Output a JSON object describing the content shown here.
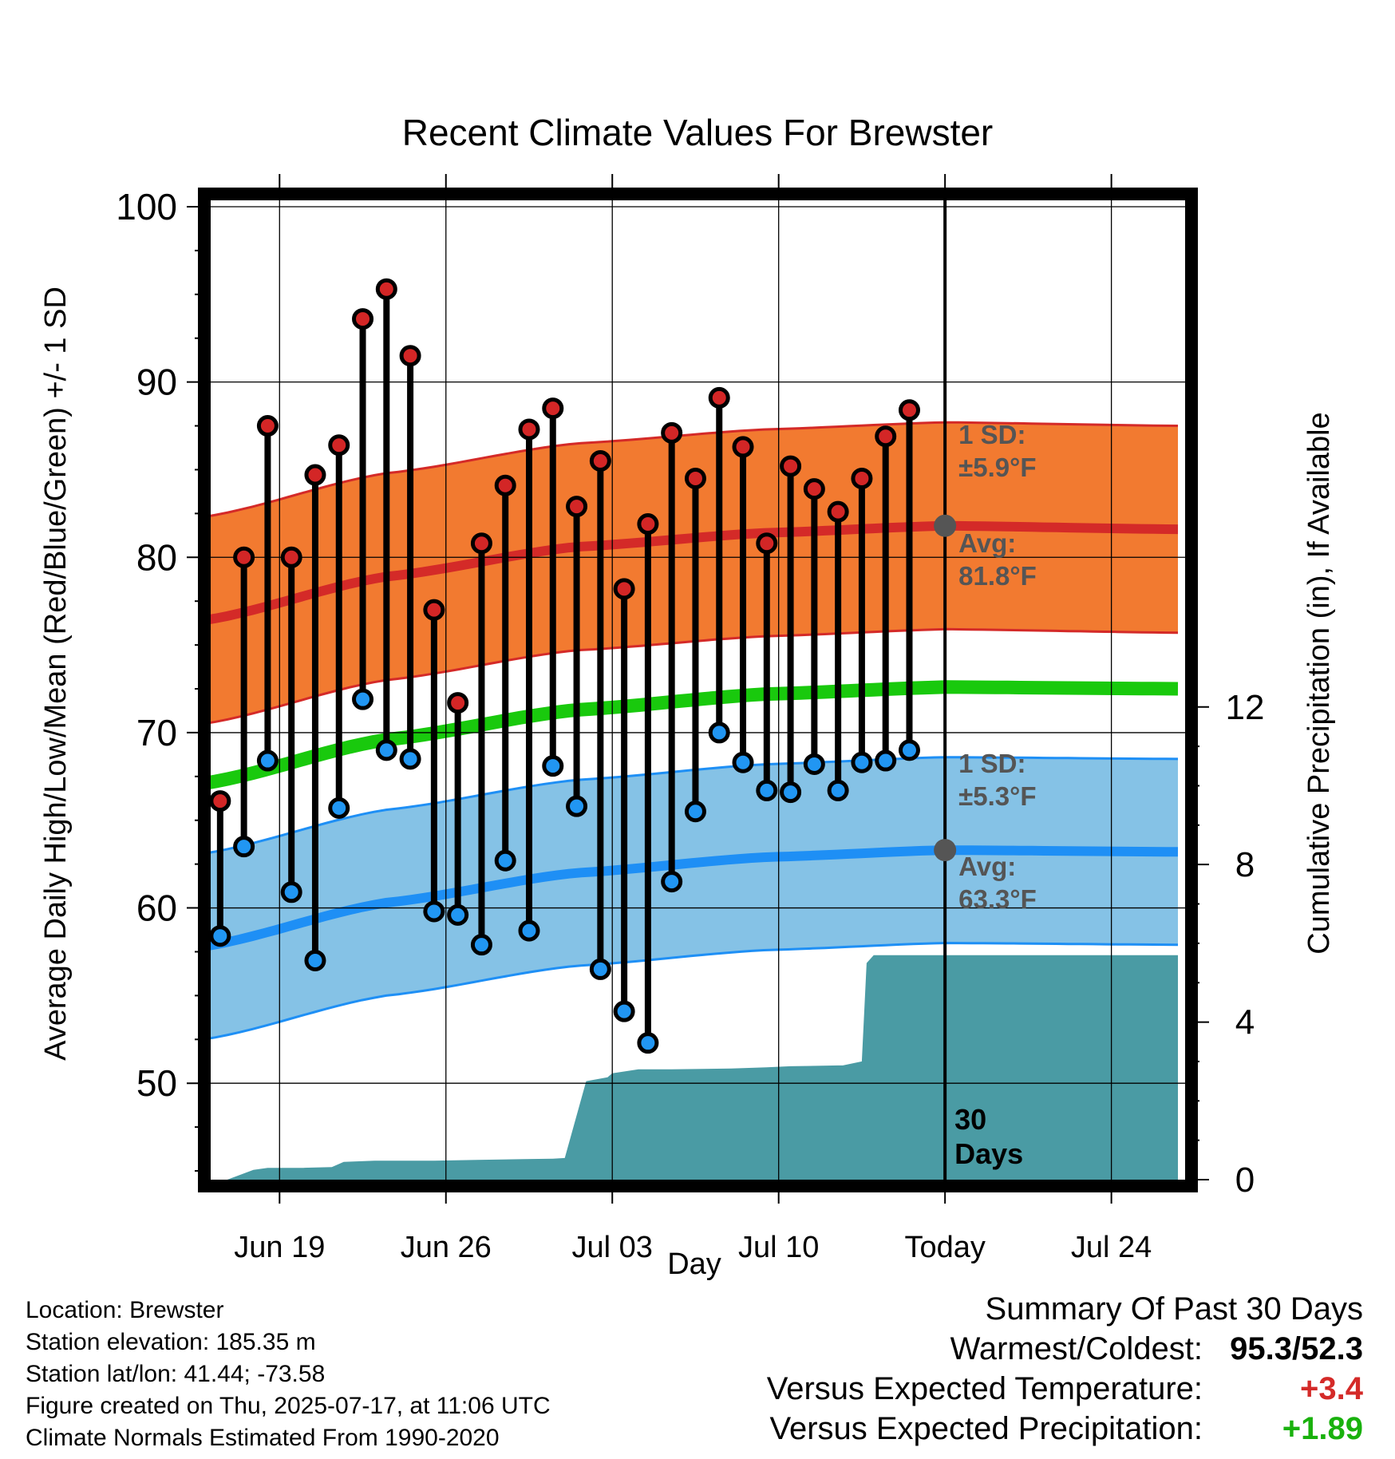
{
  "chart_data": {
    "type": "line",
    "title": "Recent Climate Values For Brewster",
    "xlabel": "Day",
    "ylabel": "Average Daily High/Low/Mean (Red/Blue/Green) +/- 1 SD",
    "ylabel_right": "Cumulative Precipitation (in), If Available",
    "ylim": [
      44.5,
      100
    ],
    "ylim_right": [
      0,
      24.7
    ],
    "yticks": [
      50,
      60,
      70,
      80,
      90,
      100
    ],
    "yticks_right": [
      0,
      4,
      8,
      12
    ],
    "xticks": [
      {
        "day": 3.5,
        "label": "Jun 19"
      },
      {
        "day": 10.5,
        "label": "Jun 26"
      },
      {
        "day": 17.5,
        "label": "Jul 03"
      },
      {
        "day": 24.5,
        "label": "Jul 10"
      },
      {
        "day": 31.5,
        "label": "Today"
      },
      {
        "day": 38.5,
        "label": "Jul 24"
      }
    ],
    "xlim": [
      0.3,
      41.3
    ],
    "grid": true,
    "today_day": 31.5,
    "window_label": "30 Days",
    "daily_high": [
      66.1,
      80.0,
      87.5,
      80.0,
      84.7,
      86.4,
      93.6,
      95.3,
      91.5,
      77.0,
      71.7,
      80.8,
      84.1,
      87.3,
      88.5,
      82.9,
      85.5,
      78.2,
      81.9,
      87.1,
      84.5,
      89.1,
      86.3,
      80.8,
      85.2,
      83.9,
      82.6,
      84.5,
      86.9,
      88.4
    ],
    "daily_low": [
      58.4,
      63.5,
      68.4,
      60.9,
      57.0,
      65.7,
      71.9,
      69.0,
      68.5,
      59.8,
      59.6,
      57.9,
      62.7,
      58.7,
      68.1,
      65.8,
      56.5,
      54.1,
      52.3,
      61.5,
      65.5,
      70.0,
      68.3,
      66.7,
      66.6,
      68.2,
      66.7,
      68.3,
      68.4,
      69.0
    ],
    "normal_high": {
      "x": [
        0.3,
        8,
        16,
        24,
        31.5,
        41.3
      ],
      "values": [
        76.4,
        78.9,
        80.6,
        81.4,
        81.8,
        81.6
      ],
      "sd": 5.9
    },
    "normal_low": {
      "x": [
        0.3,
        8,
        16,
        24,
        31.5,
        41.3
      ],
      "values": [
        57.8,
        60.3,
        62.0,
        62.9,
        63.3,
        63.2
      ],
      "sd": 5.3
    },
    "normal_mean": {
      "x": [
        0.3,
        8,
        16,
        24,
        31.5,
        41.3
      ],
      "values": [
        67.1,
        69.6,
        71.3,
        72.2,
        72.6,
        72.5
      ]
    },
    "precip_cumulative": {
      "x": [
        0.3,
        1.3,
        2.4,
        3.0,
        4.5,
        5.7,
        6.2,
        7.5,
        10.0,
        11.8,
        13.8,
        15.0,
        15.5,
        16.4,
        17.3,
        17.5,
        18.6,
        20.0,
        22.5,
        24.0,
        25.0,
        27.0,
        27.2,
        28.0,
        28.2,
        28.5,
        41.3
      ],
      "values": [
        0,
        0,
        0.25,
        0.3,
        0.3,
        0.32,
        0.45,
        0.48,
        0.48,
        0.5,
        0.52,
        0.53,
        0.55,
        2.5,
        2.6,
        2.7,
        2.8,
        2.8,
        2.82,
        2.85,
        2.88,
        2.9,
        2.9,
        3.0,
        5.5,
        5.7,
        5.7
      ]
    },
    "annotations": {
      "high_sd": "1 SD:",
      "high_sd_value": "±5.9°F",
      "high_avg": "Avg:",
      "high_avg_value": "81.8°F",
      "low_sd": "1 SD:",
      "low_sd_value": "±5.3°F",
      "low_avg": "Avg:",
      "low_avg_value": "63.3°F"
    },
    "colors": {
      "high_band": "#f27a30",
      "high_line": "#d42a28",
      "low_band": "#85c2e6",
      "low_line": "#1e8ff5",
      "mean_line": "#19c90d",
      "precip": "#4a9ba4",
      "high_dot": "#d32626",
      "low_dot": "#2196f3",
      "avg_marker": "#555555",
      "annotation_text": "#555555"
    }
  },
  "footer": {
    "location": "Location: Brewster",
    "elevation": "Station elevation: 185.35 m",
    "latlon": "Station lat/lon: 41.44; -73.58",
    "created": "Figure created on Thu, 2025-07-17, at 11:06 UTC",
    "normals": "Climate Normals Estimated From 1990-2020"
  },
  "summary": {
    "title": "Summary Of Past 30 Days",
    "warmest_label": "Warmest/Coldest:",
    "warmest_value": "95.3/52.3",
    "temp_label": "Versus Expected Temperature:",
    "temp_value": "+3.4",
    "temp_color": "#d42a28",
    "precip_label": "Versus Expected Precipitation:",
    "precip_value": "+1.89",
    "precip_color": "#19b10d"
  }
}
